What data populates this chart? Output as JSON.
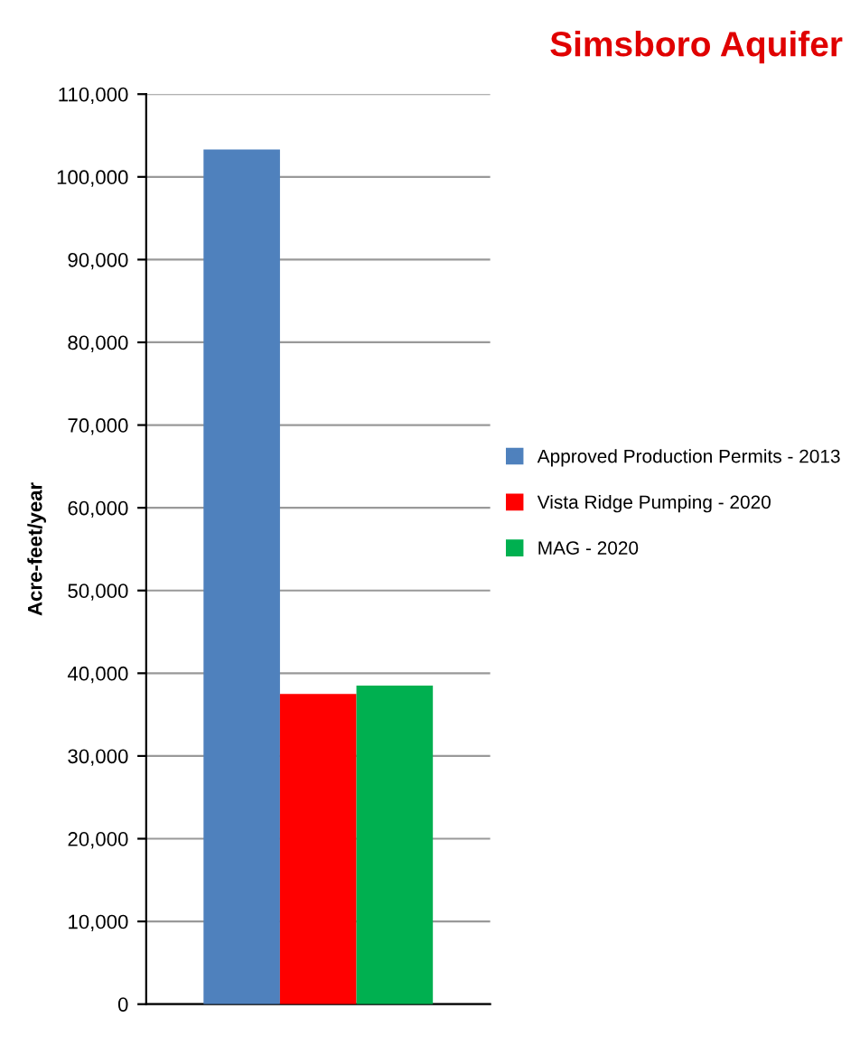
{
  "chart_data": {
    "type": "bar",
    "title": "Simsboro Aquifer",
    "ylabel": "Acre-feet/year",
    "categories": [
      null
    ],
    "series": [
      {
        "name": "Approved Production Permits - 2013",
        "color": "#4f81bd",
        "values": [
          103300
        ]
      },
      {
        "name": "Vista Ridge Pumping - 2020",
        "color": "#ff0000",
        "values": [
          37500
        ]
      },
      {
        "name": "MAG - 2020",
        "color": "#00b050",
        "values": [
          38500
        ]
      }
    ],
    "ylim": [
      0,
      110000
    ],
    "yticks": [
      {
        "value": 0,
        "label": "0"
      },
      {
        "value": 10000,
        "label": "10,000"
      },
      {
        "value": 20000,
        "label": "20,000"
      },
      {
        "value": 30000,
        "label": "30,000"
      },
      {
        "value": 40000,
        "label": "40,000"
      },
      {
        "value": 50000,
        "label": "50,000"
      },
      {
        "value": 60000,
        "label": "60,000"
      },
      {
        "value": 70000,
        "label": "70,000"
      },
      {
        "value": 80000,
        "label": "80,000"
      },
      {
        "value": 90000,
        "label": "90,000"
      },
      {
        "value": 100000,
        "label": "100,000"
      },
      {
        "value": 110000,
        "label": "110,000"
      }
    ],
    "grid": "y",
    "legend": "right",
    "tick_labels": "y"
  }
}
